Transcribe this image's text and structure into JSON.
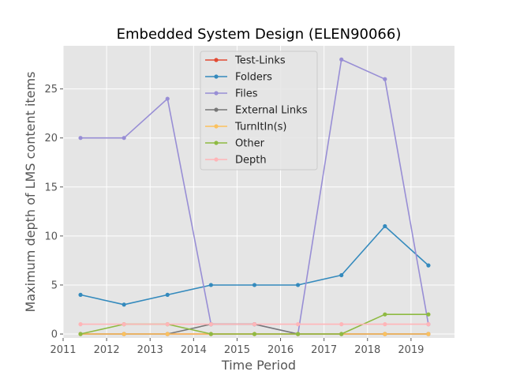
{
  "chart_data": {
    "type": "line",
    "title": "Embedded System Design (ELEN90066)",
    "xlabel": "Time Period",
    "ylabel": "Maximum depth of LMS content items",
    "xlim": [
      2011.0,
      2020.0
    ],
    "ylim": [
      -0.4,
      29.4
    ],
    "xticks": [
      2011,
      2012,
      2013,
      2014,
      2015,
      2016,
      2017,
      2018,
      2019
    ],
    "yticks": [
      0,
      5,
      10,
      15,
      20,
      25
    ],
    "x": [
      2011.4,
      2012.4,
      2013.4,
      2014.4,
      2015.4,
      2016.4,
      2017.4,
      2018.4,
      2019.4
    ],
    "grid": true,
    "legend_position": "upper-center",
    "series": [
      {
        "name": "Test-Links",
        "color": "#e24a33",
        "values": [
          0,
          0,
          0,
          0,
          0,
          0,
          0,
          0,
          0
        ]
      },
      {
        "name": "Folders",
        "color": "#348abd",
        "values": [
          4,
          3,
          4,
          5,
          5,
          5,
          6,
          11,
          7
        ]
      },
      {
        "name": "Files",
        "color": "#988ed5",
        "values": [
          20,
          20,
          24,
          1,
          1,
          0,
          28,
          26,
          1
        ]
      },
      {
        "name": "External Links",
        "color": "#777777",
        "values": [
          0,
          0,
          0,
          1,
          1,
          0,
          0,
          0,
          0
        ]
      },
      {
        "name": "TurnItIn(s)",
        "color": "#fbc15e",
        "values": [
          0,
          0,
          0,
          0,
          0,
          0,
          0,
          0,
          0
        ]
      },
      {
        "name": "Other",
        "color": "#8eba42",
        "values": [
          0,
          1,
          1,
          0,
          0,
          0,
          0,
          2,
          2
        ]
      },
      {
        "name": "Depth",
        "color": "#ffb5b8",
        "values": [
          1,
          1,
          1,
          1,
          1,
          1,
          1,
          1,
          1
        ]
      }
    ]
  }
}
